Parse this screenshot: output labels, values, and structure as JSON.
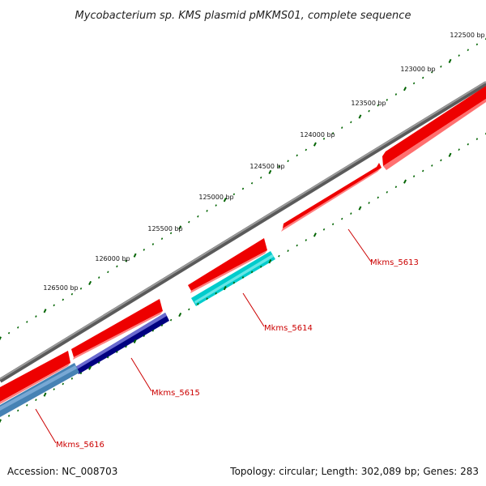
{
  "title": "Mycobacterium sp. KMS plasmid pMKMS01, complete sequence",
  "ticks": [
    {
      "label": "122500 bp"
    },
    {
      "label": "123000 bp"
    },
    {
      "label": "123500 bp"
    },
    {
      "label": "124000 bp"
    },
    {
      "label": "124500 bp"
    },
    {
      "label": "125000 bp"
    },
    {
      "label": "125500 bp"
    },
    {
      "label": "126000 bp"
    },
    {
      "label": "126500 bp"
    }
  ],
  "genes": [
    {
      "label": "Mkms_5613",
      "color": "#ff0000"
    },
    {
      "label": "Mkms_5614",
      "color": "#00cccc"
    },
    {
      "label": "Mkms_5615",
      "color": "#000080"
    },
    {
      "label": "Mkms_5616",
      "color": "#4682b4"
    }
  ],
  "colors": {
    "backbone": "#808080",
    "forward_feature": "#ff0000",
    "tick": "#006400",
    "label": "#cc0000"
  },
  "footer": {
    "left": "Accession: NC_008703",
    "right": "Topology: circular; Length: 302,089 bp; Genes: 283"
  }
}
